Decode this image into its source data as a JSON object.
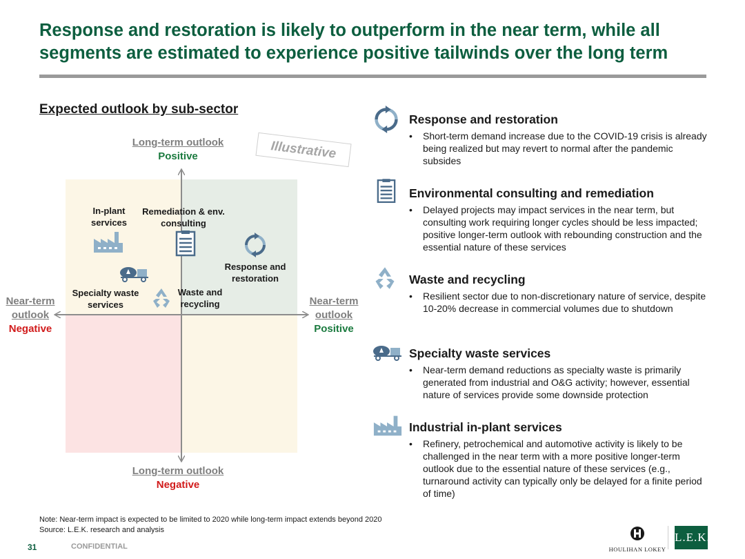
{
  "page": {
    "title": "Response and restoration is likely to outperform in the near term, while all segments are estimated to experience positive tailwinds over the long term",
    "section_heading": "Expected outlook by sub-sector",
    "illustrative_stamp": "Illustrative"
  },
  "matrix": {
    "top": {
      "label": "Long-term outlook",
      "value": "Positive"
    },
    "bottom": {
      "label": "Long-term outlook",
      "value": "Negative"
    },
    "left": {
      "label_line1": "Near-term",
      "label_line2": "outlook",
      "value": "Negative"
    },
    "right": {
      "label_line1": "Near-term",
      "label_line2": "outlook",
      "value": "Positive"
    },
    "nodes": {
      "inplant": "In-plant services",
      "remediation": "Remediation & env. consulting",
      "response": "Response and restoration",
      "specialty": "Specialty waste services",
      "waste": "Waste and recycling"
    }
  },
  "sectors": [
    {
      "icon": "cycle-arrows-icon",
      "title": "Response and restoration",
      "body": "Short-term demand increase due to the COVID-19 crisis is already being realized but may revert to normal after the pandemic subsides"
    },
    {
      "icon": "document-checklist-icon",
      "title": "Environmental consulting and remediation",
      "body": "Delayed projects may impact services in the near term, but consulting work requiring longer cycles should be less impacted; positive longer-term outlook with rebounding construction and the essential nature of these services"
    },
    {
      "icon": "recycle-icon",
      "title": "Waste and recycling",
      "body": "Resilient sector due to non-discretionary nature of service, despite 10-20% decrease in commercial volumes due to shutdown"
    },
    {
      "icon": "tanker-truck-icon",
      "title": "Specialty waste services",
      "body": "Near-term demand reductions as specialty waste is primarily generated from industrial and O&G activity; however, essential nature of services provide some downside protection"
    },
    {
      "icon": "factory-icon",
      "title": "Industrial in-plant services",
      "body": "Refinery, petrochemical and automotive activity is likely to be challenged in the near term with a more positive longer-term outlook due to the essential nature of these services (e.g., turnaround activity can typically only be delayed for a finite period of time)"
    }
  ],
  "footer": {
    "note": "Note: Near-term impact is expected to be limited to 2020 while long-term impact extends beyond 2020",
    "source": "Source: L.E.K. research and analysis",
    "page_number": "31",
    "confidential": "CONFIDENTIAL",
    "logo_houlihan": "HOULIHAN LOKEY",
    "logo_lek": "L.E.K."
  },
  "colors": {
    "title_green": "#0d5e3f",
    "positive_green": "#1a7a3e",
    "negative_red": "#d11b1b",
    "icon_blue": "#4a6b8a",
    "icon_light_blue": "#8fb0c8"
  }
}
